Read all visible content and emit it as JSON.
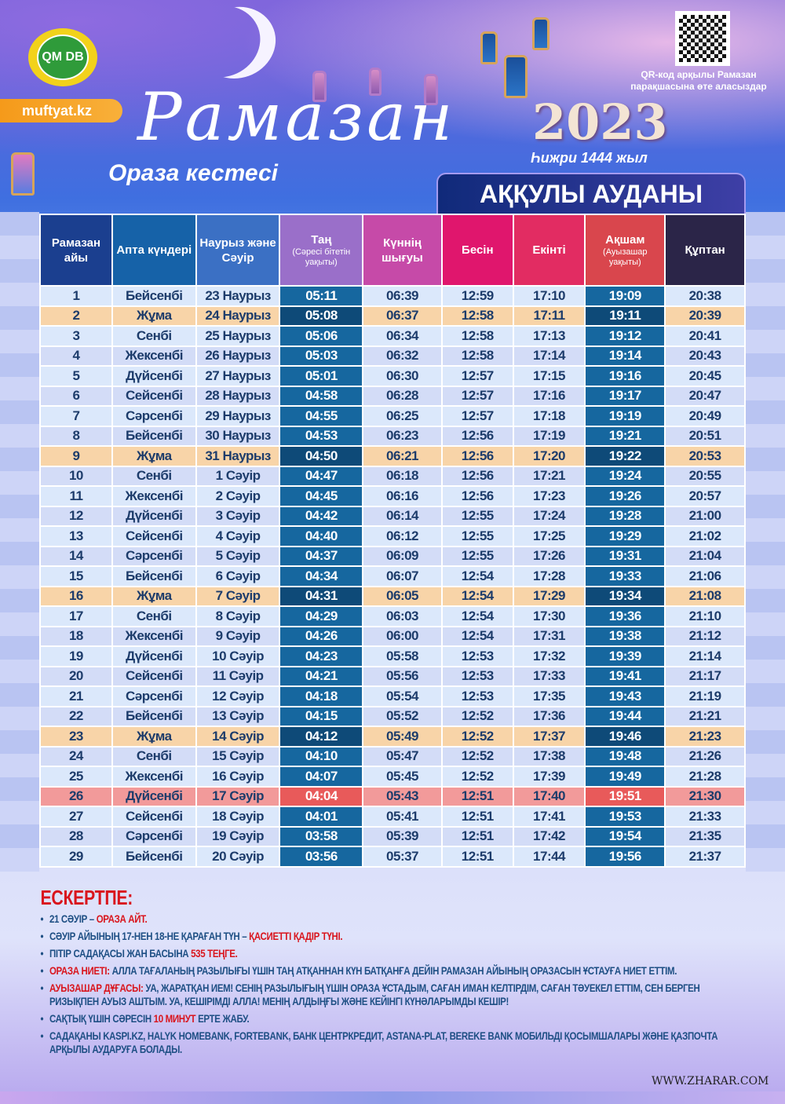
{
  "header": {
    "logo_text": "QM DB",
    "site": "muftyat.kz",
    "title": "Рамазан",
    "subtitle": "Ораза кестесі",
    "year": "2023",
    "hijri": "Һижри 1444 жыл",
    "qr_caption": "QR-код арқылы Рамазан парақшасына өте аласыздар",
    "district": "АҚҚУЛЫ АУДАНЫ"
  },
  "colors": {
    "friday_row": "#f8d4a8",
    "qadir_row": "#f29a9a",
    "highlight_column": "#16679f",
    "note_red": "#d9151d"
  },
  "table": {
    "columns": [
      {
        "label": "Рамазан айы",
        "sub": "",
        "color": "#1b3f8f"
      },
      {
        "label": "Апта күндері",
        "sub": "",
        "color": "#1662a8"
      },
      {
        "label": "Наурыз және Сәуір",
        "sub": "",
        "color": "#3b70c4"
      },
      {
        "label": "Таң",
        "sub": "(Сәресі бітетін уақыты)",
        "color": "#9a6fc9"
      },
      {
        "label": "Күннің шығуы",
        "sub": "",
        "color": "#c64aa8"
      },
      {
        "label": "Бесін",
        "sub": "",
        "color": "#e0166d"
      },
      {
        "label": "Екінті",
        "sub": "",
        "color": "#e22c62"
      },
      {
        "label": "Ақшам",
        "sub": "(Ауызашар уақыты)",
        "color": "#d9464d"
      },
      {
        "label": "Құптан",
        "sub": "",
        "color": "#2b2548"
      }
    ],
    "rows": [
      [
        "1",
        "Бейсенбі",
        "23 Наурыз",
        "05:11",
        "06:39",
        "12:59",
        "17:10",
        "19:09",
        "20:38",
        ""
      ],
      [
        "2",
        "Жұма",
        "24 Наурыз",
        "05:08",
        "06:37",
        "12:58",
        "17:11",
        "19:11",
        "20:39",
        "fri"
      ],
      [
        "3",
        "Сенбі",
        "25 Наурыз",
        "05:06",
        "06:34",
        "12:58",
        "17:13",
        "19:12",
        "20:41",
        ""
      ],
      [
        "4",
        "Жексенбі",
        "26 Наурыз",
        "05:03",
        "06:32",
        "12:58",
        "17:14",
        "19:14",
        "20:43",
        ""
      ],
      [
        "5",
        "Дүйсенбі",
        "27 Наурыз",
        "05:01",
        "06:30",
        "12:57",
        "17:15",
        "19:16",
        "20:45",
        ""
      ],
      [
        "6",
        "Сейсенбі",
        "28 Наурыз",
        "04:58",
        "06:28",
        "12:57",
        "17:16",
        "19:17",
        "20:47",
        ""
      ],
      [
        "7",
        "Сәрсенбі",
        "29 Наурыз",
        "04:55",
        "06:25",
        "12:57",
        "17:18",
        "19:19",
        "20:49",
        ""
      ],
      [
        "8",
        "Бейсенбі",
        "30 Наурыз",
        "04:53",
        "06:23",
        "12:56",
        "17:19",
        "19:21",
        "20:51",
        ""
      ],
      [
        "9",
        "Жұма",
        "31 Наурыз",
        "04:50",
        "06:21",
        "12:56",
        "17:20",
        "19:22",
        "20:53",
        "fri"
      ],
      [
        "10",
        "Сенбі",
        "1 Сәуір",
        "04:47",
        "06:18",
        "12:56",
        "17:21",
        "19:24",
        "20:55",
        ""
      ],
      [
        "11",
        "Жексенбі",
        "2 Сәуір",
        "04:45",
        "06:16",
        "12:56",
        "17:23",
        "19:26",
        "20:57",
        ""
      ],
      [
        "12",
        "Дүйсенбі",
        "3 Сәуір",
        "04:42",
        "06:14",
        "12:55",
        "17:24",
        "19:28",
        "21:00",
        ""
      ],
      [
        "13",
        "Сейсенбі",
        "4 Сәуір",
        "04:40",
        "06:12",
        "12:55",
        "17:25",
        "19:29",
        "21:02",
        ""
      ],
      [
        "14",
        "Сәрсенбі",
        "5 Сәуір",
        "04:37",
        "06:09",
        "12:55",
        "17:26",
        "19:31",
        "21:04",
        ""
      ],
      [
        "15",
        "Бейсенбі",
        "6 Сәуір",
        "04:34",
        "06:07",
        "12:54",
        "17:28",
        "19:33",
        "21:06",
        ""
      ],
      [
        "16",
        "Жұма",
        "7 Сәуір",
        "04:31",
        "06:05",
        "12:54",
        "17:29",
        "19:34",
        "21:08",
        "fri"
      ],
      [
        "17",
        "Сенбі",
        "8 Сәуір",
        "04:29",
        "06:03",
        "12:54",
        "17:30",
        "19:36",
        "21:10",
        ""
      ],
      [
        "18",
        "Жексенбі",
        "9 Сәуір",
        "04:26",
        "06:00",
        "12:54",
        "17:31",
        "19:38",
        "21:12",
        ""
      ],
      [
        "19",
        "Дүйсенбі",
        "10 Сәуір",
        "04:23",
        "05:58",
        "12:53",
        "17:32",
        "19:39",
        "21:14",
        ""
      ],
      [
        "20",
        "Сейсенбі",
        "11 Сәуір",
        "04:21",
        "05:56",
        "12:53",
        "17:33",
        "19:41",
        "21:17",
        ""
      ],
      [
        "21",
        "Сәрсенбі",
        "12 Сәуір",
        "04:18",
        "05:54",
        "12:53",
        "17:35",
        "19:43",
        "21:19",
        ""
      ],
      [
        "22",
        "Бейсенбі",
        "13 Сәуір",
        "04:15",
        "05:52",
        "12:52",
        "17:36",
        "19:44",
        "21:21",
        ""
      ],
      [
        "23",
        "Жұма",
        "14 Сәуір",
        "04:12",
        "05:49",
        "12:52",
        "17:37",
        "19:46",
        "21:23",
        "fri"
      ],
      [
        "24",
        "Сенбі",
        "15 Сәуір",
        "04:10",
        "05:47",
        "12:52",
        "17:38",
        "19:48",
        "21:26",
        ""
      ],
      [
        "25",
        "Жексенбі",
        "16 Сәуір",
        "04:07",
        "05:45",
        "12:52",
        "17:39",
        "19:49",
        "21:28",
        ""
      ],
      [
        "26",
        "Дүйсенбі",
        "17 Сәуір",
        "04:04",
        "05:43",
        "12:51",
        "17:40",
        "19:51",
        "21:30",
        "qadir"
      ],
      [
        "27",
        "Сейсенбі",
        "18 Сәуір",
        "04:01",
        "05:41",
        "12:51",
        "17:41",
        "19:53",
        "21:33",
        ""
      ],
      [
        "28",
        "Сәрсенбі",
        "19 Сәуір",
        "03:58",
        "05:39",
        "12:51",
        "17:42",
        "19:54",
        "21:35",
        ""
      ],
      [
        "29",
        "Бейсенбі",
        "20 Сәуір",
        "03:56",
        "05:37",
        "12:51",
        "17:44",
        "19:56",
        "21:37",
        ""
      ]
    ]
  },
  "notes": {
    "title": "ЕСКЕРТПЕ:",
    "items": [
      [
        {
          "t": "21 Сәуір – "
        },
        {
          "t": "Ораза айт.",
          "red": true
        }
      ],
      [
        {
          "t": "Сәуір айының 17-нен 18-не қараған түн – "
        },
        {
          "t": "Қасиетті Қадір түні.",
          "red": true
        }
      ],
      [
        {
          "t": "Пітір садақасы жан басына "
        },
        {
          "t": "535 теңге.",
          "red": true
        }
      ],
      [
        {
          "t": "Ораза ниеті: ",
          "red": true
        },
        {
          "t": "Алла Тағаланың разылығы үшін таң атқаннан күн батқанға дейін Рамазан айының оразасын ұстауға ниет еттім."
        }
      ],
      [
        {
          "t": "Ауызашар дұғасы: ",
          "red": true
        },
        {
          "t": "Уа, Жаратқан Ием! Сенің разылығың үшін ораза ұстадым, саған иман келтірдім, саған тәуекел еттім, сен берген ризықпен ауыз аштым. Уа, Кешірімді Алла! Менің алдыңғы және кейінгі күнәларымды кешір!"
        }
      ],
      [
        {
          "t": "Сақтық үшін сәресін "
        },
        {
          "t": "10 минут",
          "red": true
        },
        {
          "t": " ерте жабу."
        }
      ],
      [
        {
          "t": "Садақаны Kaspi.kz, Halyk Homebank, Fortebank, Банк ЦентрКредит, Astana-Plat, Bereke Bank мобильді қосымшалары және Қазпочта арқылы аударуға болады."
        }
      ]
    ]
  },
  "watermark": "WWW.ZHARAR.COM"
}
